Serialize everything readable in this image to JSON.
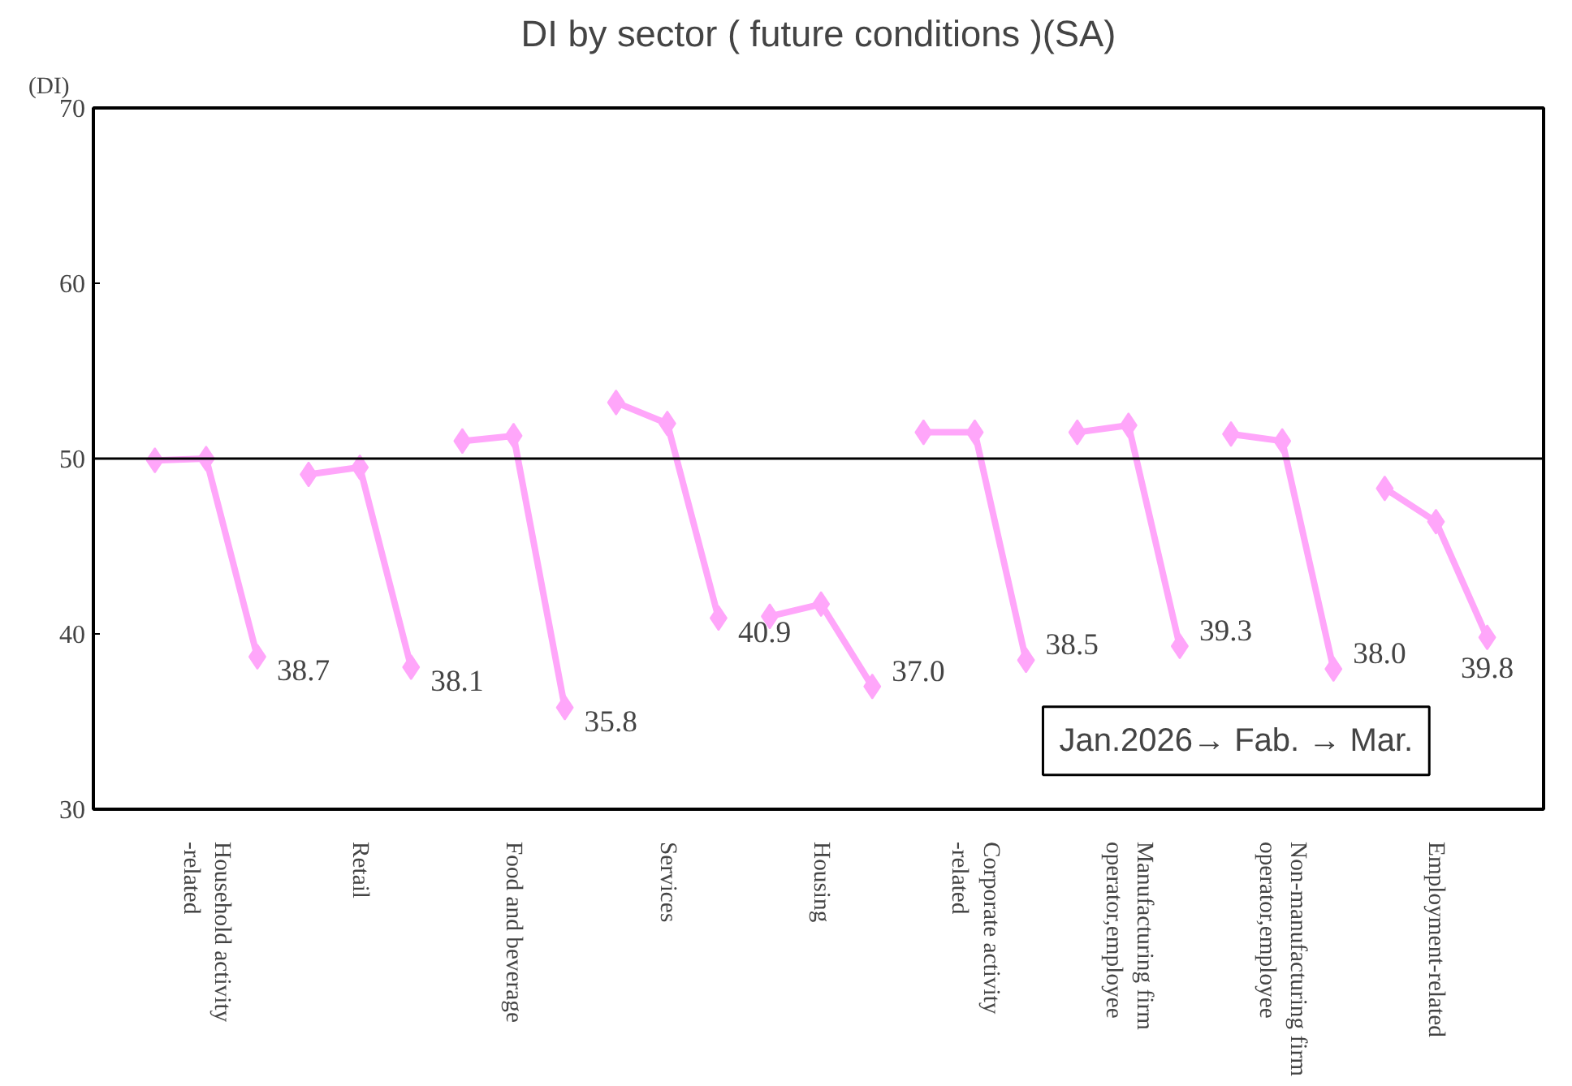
{
  "chart_data": {
    "type": "line",
    "title": "DI by sector ( future conditions )(SA)",
    "ylabel": "(DI)",
    "categories": [
      null,
      "Household activity\n-related",
      null,
      null,
      "Retail",
      null,
      null,
      "Food and beverage",
      null,
      null,
      "Services",
      null,
      null,
      "Housing",
      null,
      null,
      "Corporate activity\n-related",
      null,
      null,
      "Manufacturing firm\noperator,employee",
      null,
      null,
      "Non-manufacturing firm\noperator,employee",
      null,
      null,
      "Employment-related",
      null
    ],
    "series": [
      {
        "color": "#ffa6fa",
        "values": [
          49.9,
          50.0,
          38.7,
          null,
          null,
          null,
          null,
          null,
          null,
          null,
          null,
          null,
          null,
          null,
          null,
          null,
          null,
          null,
          null,
          null,
          null,
          null,
          null,
          null,
          null,
          null,
          null
        ],
        "value_labels": [
          null,
          null,
          "38.7",
          null,
          null,
          null,
          null,
          null,
          null,
          null,
          null,
          null,
          null,
          null,
          null,
          null,
          null,
          null,
          null,
          null,
          null,
          null,
          null,
          null,
          null,
          null,
          null
        ]
      },
      {
        "color": "#ffa6fa",
        "values": [
          null,
          null,
          null,
          49.1,
          49.5,
          38.1,
          null,
          null,
          null,
          null,
          null,
          null,
          null,
          null,
          null,
          null,
          null,
          null,
          null,
          null,
          null,
          null,
          null,
          null,
          null,
          null,
          null
        ],
        "value_labels": [
          null,
          null,
          null,
          null,
          null,
          "38.1",
          null,
          null,
          null,
          null,
          null,
          null,
          null,
          null,
          null,
          null,
          null,
          null,
          null,
          null,
          null,
          null,
          null,
          null,
          null,
          null,
          null
        ]
      },
      {
        "color": "#ffa6fa",
        "values": [
          null,
          null,
          null,
          null,
          null,
          null,
          51.0,
          51.3,
          35.8,
          null,
          null,
          null,
          null,
          null,
          null,
          null,
          null,
          null,
          null,
          null,
          null,
          null,
          null,
          null,
          null,
          null,
          null
        ],
        "value_labels": [
          null,
          null,
          null,
          null,
          null,
          null,
          null,
          null,
          "35.8",
          null,
          null,
          null,
          null,
          null,
          null,
          null,
          null,
          null,
          null,
          null,
          null,
          null,
          null,
          null,
          null,
          null,
          null
        ]
      },
      {
        "color": "#ffa6fa",
        "values": [
          null,
          null,
          null,
          null,
          null,
          null,
          null,
          null,
          null,
          53.2,
          52.0,
          40.9,
          null,
          null,
          null,
          null,
          null,
          null,
          null,
          null,
          null,
          null,
          null,
          null,
          null,
          null,
          null
        ],
        "value_labels": [
          null,
          null,
          null,
          null,
          null,
          null,
          null,
          null,
          null,
          null,
          null,
          "40.9",
          null,
          null,
          null,
          null,
          null,
          null,
          null,
          null,
          null,
          null,
          null,
          null,
          null,
          null,
          null
        ]
      },
      {
        "color": "#ffa6fa",
        "values": [
          null,
          null,
          null,
          null,
          null,
          null,
          null,
          null,
          null,
          null,
          null,
          null,
          41.0,
          41.7,
          37.0,
          null,
          null,
          null,
          null,
          null,
          null,
          null,
          null,
          null,
          null,
          null,
          null
        ],
        "value_labels": [
          null,
          null,
          null,
          null,
          null,
          null,
          null,
          null,
          null,
          null,
          null,
          null,
          null,
          null,
          "37.0",
          null,
          null,
          null,
          null,
          null,
          null,
          null,
          null,
          null,
          null,
          null,
          null
        ]
      },
      {
        "color": "#ffa6fa",
        "values": [
          null,
          null,
          null,
          null,
          null,
          null,
          null,
          null,
          null,
          null,
          null,
          null,
          null,
          null,
          null,
          51.5,
          51.5,
          38.5,
          null,
          null,
          null,
          null,
          null,
          null,
          null,
          null,
          null
        ],
        "value_labels": [
          null,
          null,
          null,
          null,
          null,
          null,
          null,
          null,
          null,
          null,
          null,
          null,
          null,
          null,
          null,
          null,
          null,
          "38.5",
          null,
          null,
          null,
          null,
          null,
          null,
          null,
          null,
          null
        ]
      },
      {
        "color": "#ffa6fa",
        "values": [
          null,
          null,
          null,
          null,
          null,
          null,
          null,
          null,
          null,
          null,
          null,
          null,
          null,
          null,
          null,
          null,
          null,
          null,
          51.5,
          51.9,
          39.3,
          null,
          null,
          null,
          null,
          null,
          null
        ],
        "value_labels": [
          null,
          null,
          null,
          null,
          null,
          null,
          null,
          null,
          null,
          null,
          null,
          null,
          null,
          null,
          null,
          null,
          null,
          null,
          null,
          null,
          "39.3",
          null,
          null,
          null,
          null,
          null,
          null
        ]
      },
      {
        "color": "#ffa6fa",
        "values": [
          null,
          null,
          null,
          null,
          null,
          null,
          null,
          null,
          null,
          null,
          null,
          null,
          null,
          null,
          null,
          null,
          null,
          null,
          null,
          null,
          null,
          51.4,
          51.0,
          38.0,
          null,
          null,
          null
        ],
        "value_labels": [
          null,
          null,
          null,
          null,
          null,
          null,
          null,
          null,
          null,
          null,
          null,
          null,
          null,
          null,
          null,
          null,
          null,
          null,
          null,
          null,
          null,
          null,
          null,
          "38.0",
          null,
          null,
          null
        ]
      },
      {
        "color": "#ffa6fa",
        "values": [
          null,
          null,
          null,
          null,
          null,
          null,
          null,
          null,
          null,
          null,
          null,
          null,
          null,
          null,
          null,
          null,
          null,
          null,
          null,
          null,
          null,
          null,
          null,
          null,
          48.3,
          46.4,
          39.8
        ],
        "value_labels": [
          null,
          null,
          null,
          null,
          null,
          null,
          null,
          null,
          null,
          null,
          null,
          null,
          null,
          null,
          null,
          null,
          null,
          null,
          null,
          null,
          null,
          null,
          null,
          null,
          null,
          null,
          "39.8"
        ]
      }
    ],
    "ylim": [
      30,
      70
    ],
    "yticks": [
      30,
      40,
      50,
      60,
      70
    ],
    "ref_lines": [
      {
        "axis": "y",
        "value": 50,
        "color": "#000000"
      }
    ],
    "annotations": [
      "Jan.2026→ Fab. → Mar."
    ],
    "marker": "diamond",
    "line_style": "solid",
    "grid": false
  }
}
